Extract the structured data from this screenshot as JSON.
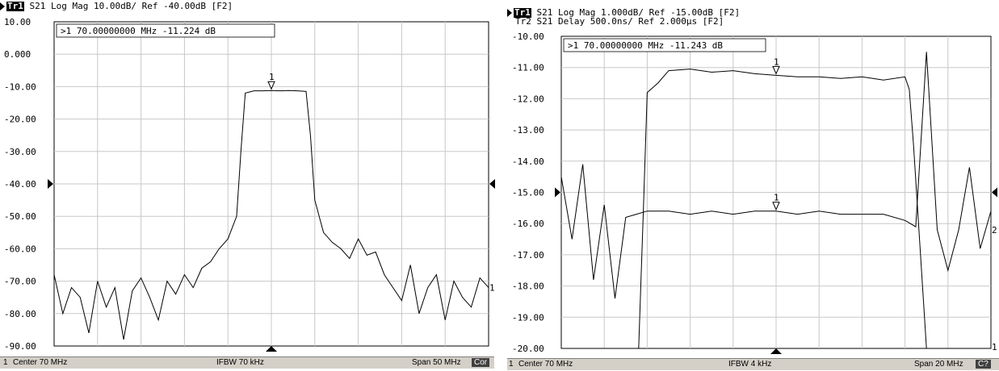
{
  "chart_data": [
    {
      "type": "line",
      "trace_tag": "Tr1",
      "header_line1": "S21 Log Mag 10.00dB/ Ref -40.00dB [F2]",
      "marker_readout": ">1  70.00000000 MHz -11.224 dB",
      "marker_label": "1",
      "y_ticks": [
        "10.00",
        "0.000",
        "-10.00",
        "-20.00",
        "-30.00",
        "-40.00",
        "-50.00",
        "-60.00",
        "-70.00",
        "-80.00",
        "-90.00"
      ],
      "ylim": [
        -90,
        10
      ],
      "xlim": [
        45,
        95
      ],
      "x_divisions": 10,
      "ref_level": -40,
      "end_label": "1",
      "status": {
        "channel": "1",
        "left": "Center 70 MHz",
        "center": "IFBW 70 kHz",
        "right": "Span 50 MHz",
        "badge": "Cor"
      },
      "series": [
        {
          "x": [
            45,
            46,
            47,
            48,
            49,
            50,
            51,
            52,
            53,
            54,
            55,
            56,
            57,
            58,
            59,
            60,
            61,
            62,
            63,
            64,
            65,
            66,
            66.5,
            67,
            68,
            69,
            70,
            71,
            72,
            73,
            74,
            74.5,
            75,
            76,
            77,
            78,
            79,
            80,
            81,
            82,
            83,
            84,
            85,
            86,
            87,
            88,
            89,
            90,
            91,
            92,
            93,
            94,
            95
          ],
          "y": [
            -68,
            -80,
            -72,
            -75,
            -86,
            -70,
            -78,
            -72,
            -88,
            -73,
            -69,
            -75,
            -82,
            -70,
            -74,
            -68,
            -72,
            -66,
            -64,
            -60,
            -57,
            -50,
            -30,
            -12,
            -11.3,
            -11.3,
            -11.2,
            -11.3,
            -11.2,
            -11.3,
            -11.5,
            -25,
            -45,
            -55,
            -58,
            -60,
            -63,
            -57,
            -62,
            -61,
            -68,
            -72,
            -76,
            -65,
            -80,
            -72,
            -68,
            -82,
            -70,
            -75,
            -78,
            -69,
            -72
          ]
        }
      ]
    },
    {
      "type": "line",
      "trace_tag": "Tr1",
      "header_line1": "S21 Log Mag 1.000dB/ Ref -15.00dB [F2]",
      "header_line2": "Tr2 S21 Delay 500.0ns/ Ref 2.000µs [F2]",
      "marker_readout": ">1  70.00000000 MHz -11.243 dB",
      "marker_label": "1",
      "y_ticks": [
        "-10.00",
        "-11.00",
        "-12.00",
        "-13.00",
        "-14.00",
        "-15.00",
        "-16.00",
        "-17.00",
        "-18.00",
        "-19.00",
        "-20.00"
      ],
      "ylim": [
        -20,
        -10
      ],
      "xlim": [
        60,
        80
      ],
      "x_divisions": 10,
      "ref_level": -15,
      "end_labels": [
        "2",
        "1"
      ],
      "status": {
        "channel": "1",
        "left": "Center 70 MHz",
        "center": "IFBW 4 kHz",
        "right": "Span 20 MHz",
        "badge": "C?"
      },
      "series": [
        {
          "name": "Tr1 S21 Log Mag",
          "x": [
            60,
            61,
            62,
            63,
            63.6,
            63.8,
            64,
            64.5,
            65,
            66,
            67,
            68,
            69,
            70,
            71,
            72,
            73,
            74,
            75,
            76,
            76.2,
            76.4,
            77,
            77.5,
            78,
            79,
            80
          ],
          "y": [
            -20,
            -20,
            -20,
            -20,
            -20,
            -16,
            -11.8,
            -11.5,
            -11.1,
            -11.05,
            -11.15,
            -11.1,
            -11.2,
            -11.25,
            -11.3,
            -11.3,
            -11.35,
            -11.3,
            -11.4,
            -11.3,
            -11.7,
            -13.5,
            -20,
            -20,
            -20,
            -20,
            -20
          ]
        },
        {
          "name": "Tr2 S21 Delay",
          "x": [
            60,
            60.5,
            61,
            61.5,
            62,
            62.5,
            63,
            63.5,
            64,
            65,
            66,
            67,
            68,
            69,
            70,
            71,
            72,
            73,
            74,
            75,
            76,
            76.5,
            77,
            77.5,
            78,
            78.5,
            79,
            79.5,
            80
          ],
          "y": [
            -14.5,
            -16.5,
            -14.1,
            -17.8,
            -15.4,
            -18.4,
            -15.8,
            -15.7,
            -15.6,
            -15.6,
            -15.7,
            -15.6,
            -15.7,
            -15.6,
            -15.6,
            -15.7,
            -15.6,
            -15.7,
            -15.7,
            -15.7,
            -15.9,
            -16.1,
            -10.5,
            -16.2,
            -17.5,
            -16.2,
            -14.2,
            -16.8,
            -15.6
          ]
        }
      ]
    }
  ]
}
